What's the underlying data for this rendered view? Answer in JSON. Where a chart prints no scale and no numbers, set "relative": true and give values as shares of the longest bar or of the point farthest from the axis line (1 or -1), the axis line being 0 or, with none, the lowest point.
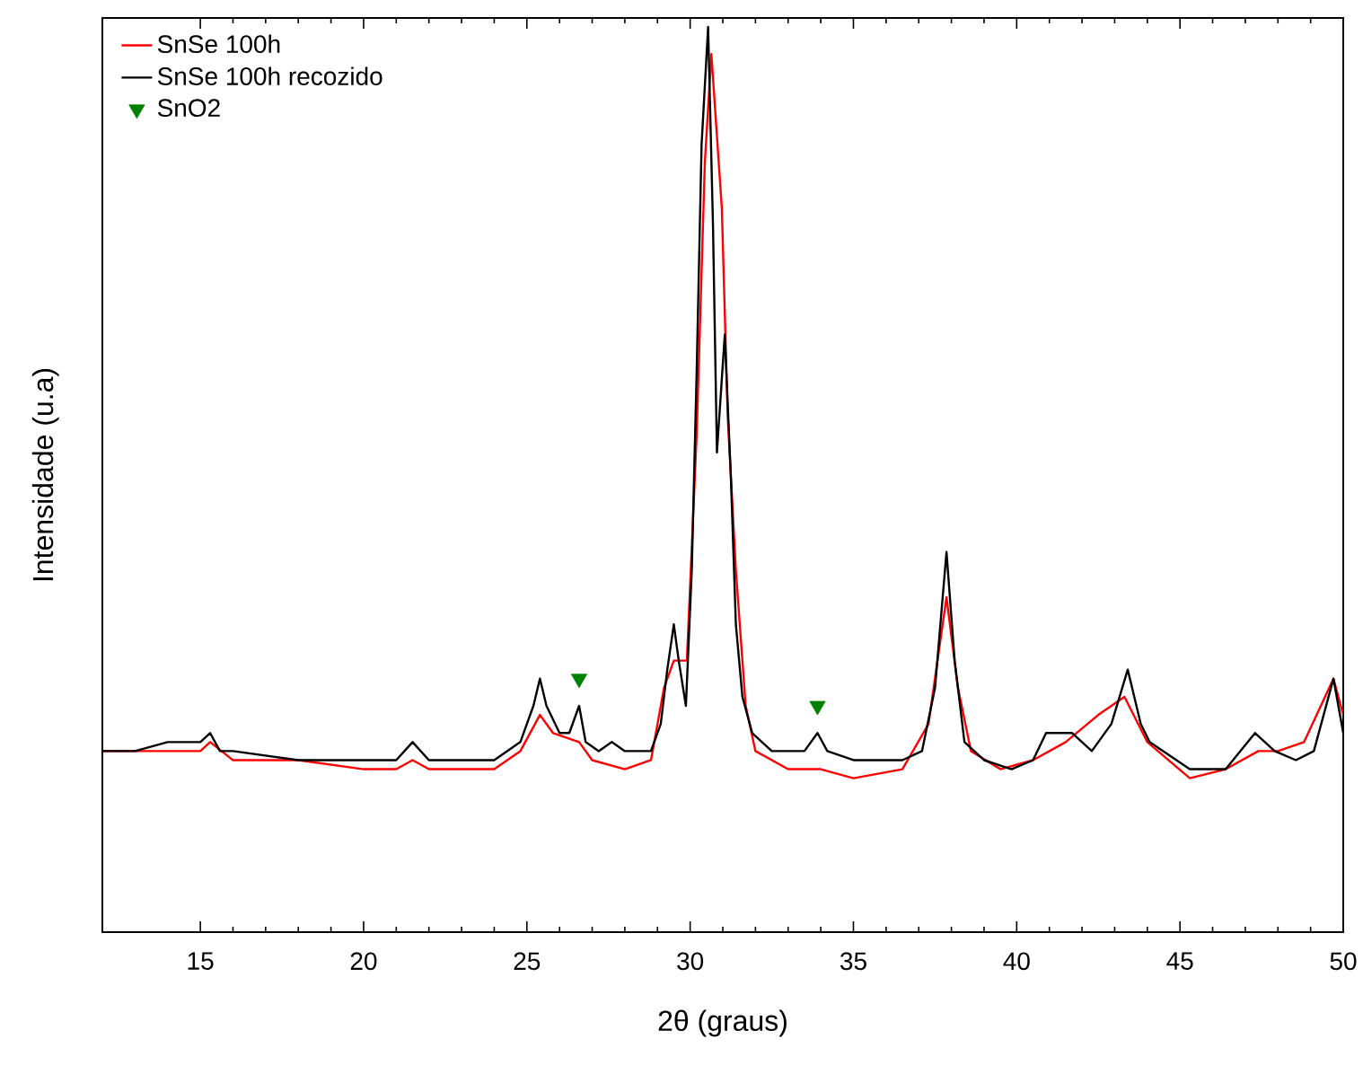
{
  "chart_data": {
    "type": "line",
    "xlabel": "2θ (graus)",
    "ylabel": "Intensidade (u.a)",
    "relative": true,
    "xlim": [
      12,
      50
    ],
    "xticks": [
      15,
      20,
      25,
      30,
      35,
      40,
      45,
      50
    ],
    "legend": "top left",
    "series": [
      {
        "name": "SnSe 100h",
        "color": "#ff0000",
        "marker": "none",
        "x": [
          12,
          13,
          14,
          15,
          15.3,
          16,
          18,
          20,
          21,
          21.5,
          22,
          24,
          24.8,
          25.4,
          25.8,
          26.6,
          27,
          28,
          28.8,
          29.2,
          29.5,
          29.9,
          30.2,
          30.45,
          30.65,
          30.97,
          31.15,
          31.4,
          31.7,
          32,
          33,
          34,
          35,
          36.5,
          37.3,
          37.85,
          38.2,
          38.6,
          39.5,
          40.5,
          41.5,
          42.5,
          43.3,
          44,
          45.3,
          46.4,
          47.4,
          48,
          48.8,
          49.7,
          50
        ],
        "values": [
          0.2,
          0.2,
          0.2,
          0.2,
          0.21,
          0.19,
          0.19,
          0.18,
          0.18,
          0.19,
          0.18,
          0.18,
          0.2,
          0.24,
          0.22,
          0.21,
          0.19,
          0.18,
          0.19,
          0.27,
          0.3,
          0.3,
          0.55,
          0.85,
          0.97,
          0.8,
          0.57,
          0.4,
          0.25,
          0.2,
          0.18,
          0.18,
          0.17,
          0.18,
          0.23,
          0.37,
          0.27,
          0.2,
          0.18,
          0.19,
          0.21,
          0.24,
          0.26,
          0.21,
          0.17,
          0.18,
          0.2,
          0.2,
          0.21,
          0.28,
          0.24
        ]
      },
      {
        "name": "SnSe 100h recozido",
        "color": "#000000",
        "marker": "none",
        "x": [
          12,
          13,
          14,
          14.5,
          15,
          15.3,
          15.6,
          16,
          18,
          20,
          21,
          21.5,
          22,
          23,
          24,
          24.8,
          25.2,
          25.4,
          25.6,
          26,
          26.3,
          26.6,
          26.8,
          27.2,
          27.6,
          28,
          28.8,
          29.1,
          29.3,
          29.5,
          29.65,
          29.87,
          30.05,
          30.2,
          30.35,
          30.55,
          30.7,
          30.82,
          31.06,
          31.25,
          31.4,
          31.6,
          31.9,
          32.5,
          33.5,
          33.9,
          34.2,
          35,
          35.55,
          36.5,
          37.1,
          37.5,
          37.85,
          38.1,
          38.4,
          39,
          39.84,
          40.5,
          40.9,
          41.7,
          42.3,
          42.9,
          43.4,
          43.8,
          44.07,
          45.3,
          46.4,
          47.3,
          47.9,
          48.55,
          49.1,
          49.7,
          50
        ],
        "values": [
          0.2,
          0.2,
          0.21,
          0.21,
          0.21,
          0.22,
          0.2,
          0.2,
          0.19,
          0.19,
          0.19,
          0.21,
          0.19,
          0.19,
          0.19,
          0.21,
          0.25,
          0.28,
          0.25,
          0.22,
          0.22,
          0.25,
          0.21,
          0.2,
          0.21,
          0.2,
          0.2,
          0.23,
          0.29,
          0.34,
          0.3,
          0.25,
          0.4,
          0.62,
          0.87,
          1.0,
          0.78,
          0.53,
          0.66,
          0.5,
          0.34,
          0.26,
          0.22,
          0.2,
          0.2,
          0.22,
          0.2,
          0.19,
          0.19,
          0.19,
          0.2,
          0.27,
          0.42,
          0.3,
          0.21,
          0.19,
          0.18,
          0.19,
          0.22,
          0.22,
          0.2,
          0.23,
          0.29,
          0.23,
          0.21,
          0.18,
          0.18,
          0.22,
          0.2,
          0.19,
          0.2,
          0.28,
          0.22
        ]
      },
      {
        "name": "SnO2",
        "color": "#008000",
        "type": "scatter",
        "marker": "triangle",
        "x": [
          26.6,
          33.9
        ],
        "values": [
          0.28,
          0.25
        ]
      }
    ]
  }
}
